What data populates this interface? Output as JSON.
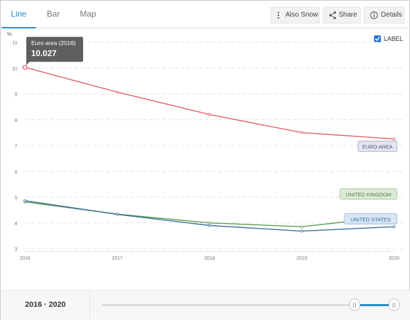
{
  "tabs": [
    {
      "label": "Line",
      "active": true
    },
    {
      "label": "Bar",
      "active": false
    },
    {
      "label": "Map",
      "active": false
    }
  ],
  "toolbar": {
    "also_show_label": "Also Snow",
    "share_label": "Share",
    "details_label": "Details"
  },
  "label_toggle": {
    "text": "LABEL",
    "checked": true
  },
  "tooltip": {
    "title": "Euro area (2016)",
    "value": "10.027"
  },
  "range": {
    "text": "2016 · 2020",
    "handle_positions": [
      0,
      1
    ]
  },
  "colors": {
    "accent": "#2b8cc4",
    "euro_area": "#e0626a",
    "united_kingdom": "#5d9c4f",
    "united_states": "#3a6f9c"
  },
  "chart_data": {
    "type": "line",
    "ylabel": "%",
    "x": [
      2016,
      2017,
      2018,
      2019,
      2020
    ],
    "x_ticks": [
      "2016",
      "2017",
      "2018",
      "2019",
      "2020"
    ],
    "ylim": [
      3,
      11
    ],
    "y_ticks": [
      "3",
      "4",
      "5",
      "6",
      "7",
      "8",
      "9",
      "10",
      "11"
    ],
    "grid": true,
    "series": [
      {
        "name": "EURO AREA",
        "color": "#e0626a",
        "label_bg": "#e3e6f0",
        "label_border": "#a9b2c9",
        "label_color": "#4a5573",
        "values": [
          10.027,
          9.07,
          8.2,
          7.5,
          7.25
        ]
      },
      {
        "name": "UNITED KINGDOM",
        "color": "#5d9c4f",
        "label_bg": "#dcebd6",
        "label_border": "#a7c99a",
        "label_color": "#4a7f3c",
        "values": [
          4.81,
          4.34,
          4.0,
          3.85,
          4.25
        ]
      },
      {
        "name": "UNITED STATES",
        "color": "#3a6f9c",
        "label_bg": "#d8e6f3",
        "label_border": "#9fbcd8",
        "label_color": "#3a6f9c",
        "values": [
          4.86,
          4.33,
          3.9,
          3.68,
          3.85
        ]
      }
    ]
  }
}
